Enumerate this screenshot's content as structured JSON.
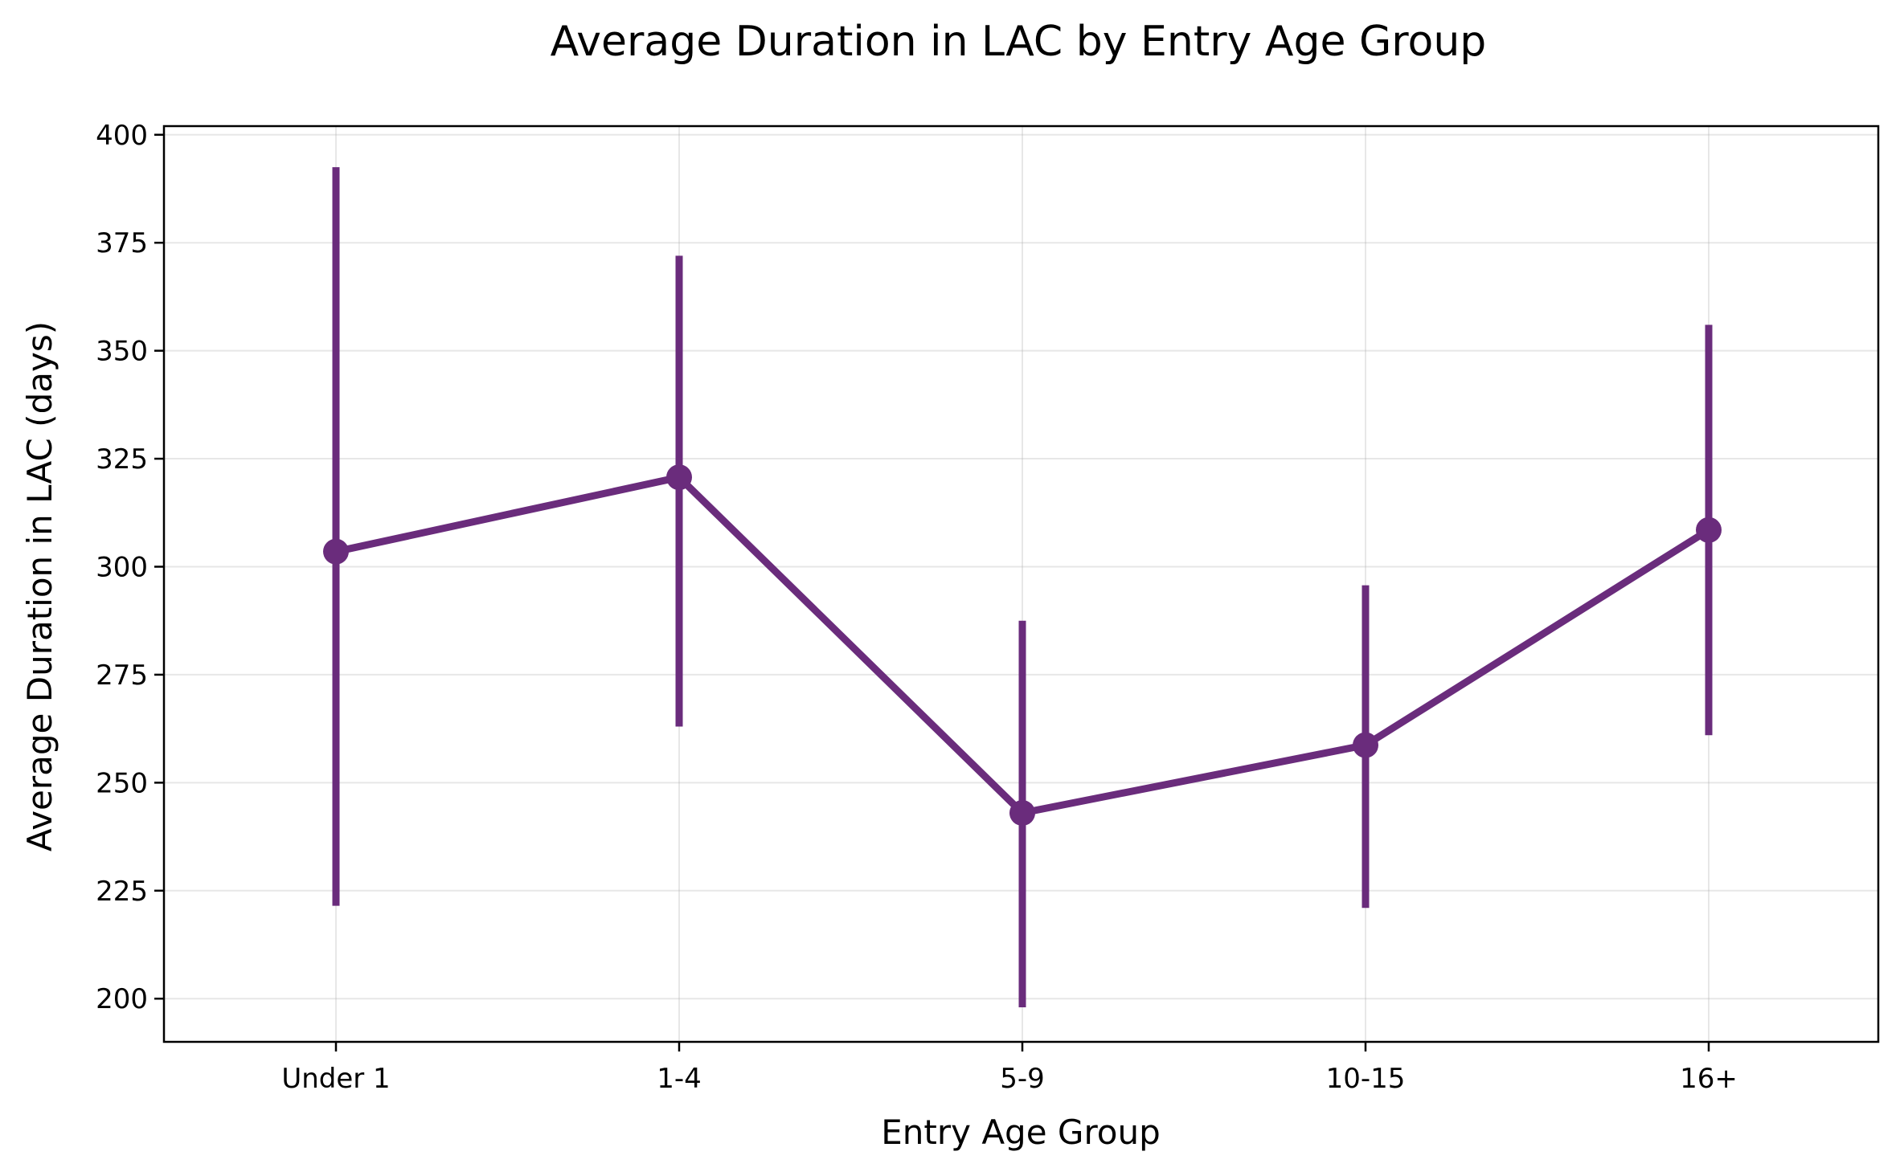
{
  "chart_data": {
    "type": "line",
    "title": "Average Duration in LAC by Entry Age Group",
    "xlabel": "Entry Age Group",
    "ylabel": "Average Duration in LAC (days)",
    "categories": [
      "Under 1",
      "1-4",
      "5-9",
      "10-15",
      "16+"
    ],
    "series": [
      {
        "values": [
          303.5,
          320.7,
          243.0,
          258.7,
          308.5
        ],
        "err_low": [
          221.5,
          263.0,
          198.0,
          221.0,
          261.0
        ],
        "err_high": [
          392.5,
          372.0,
          287.5,
          295.7,
          356.0
        ],
        "color": "#6a2c7c"
      }
    ],
    "ylim": [
      190,
      402
    ],
    "yticks": [
      200,
      225,
      250,
      275,
      300,
      325,
      350,
      375,
      400
    ],
    "grid": true,
    "legend": "none"
  }
}
